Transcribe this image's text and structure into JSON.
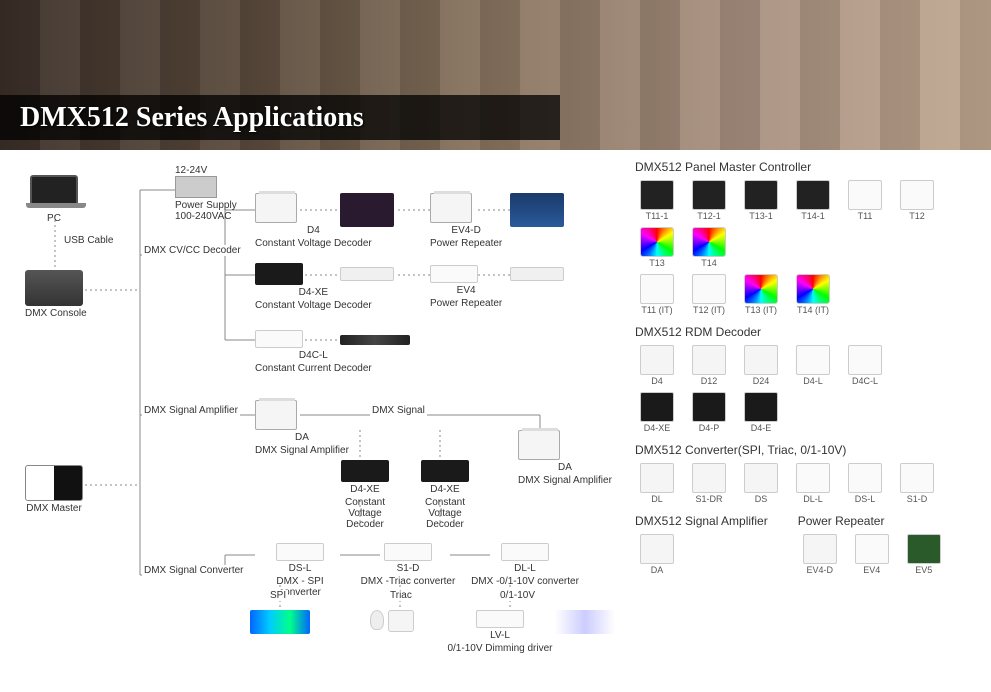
{
  "banner": {
    "title": "DMX512 Series Applications"
  },
  "diagram": {
    "psu": {
      "top_label": "12-24V",
      "bottom_label": "Power Supply\n100-240VAC"
    },
    "pc": {
      "label": "PC"
    },
    "usb_cable": "USB Cable",
    "console": {
      "label": "DMX Console"
    },
    "master": {
      "label": "DMX Master"
    },
    "branch1_label": "DMX CV/CC Decoder",
    "branch2_label": "DMX Signal Amplifier",
    "branch3_label": "DMX Signal Converter",
    "dmx_signal_label": "DMX Signal",
    "d4": {
      "name": "D4",
      "sub": "Constant Voltage Decoder"
    },
    "ev4d": {
      "name": "EV4-D",
      "sub": "Power Repeater"
    },
    "d4xe": {
      "name": "D4-XE",
      "sub": "Constant Voltage Decoder"
    },
    "ev4": {
      "name": "EV4",
      "sub": "Power Repeater"
    },
    "d4cl": {
      "name": "D4C-L",
      "sub": "Constant Current Decoder"
    },
    "da1": {
      "name": "DA",
      "sub": "DMX Signal Amplifier"
    },
    "da2": {
      "name": "DA",
      "sub": "DMX Signal Amplifier"
    },
    "d4xe_mid1": {
      "name": "D4-XE",
      "sub": "Constant\nVoltage\nDecoder"
    },
    "d4xe_mid2": {
      "name": "D4-XE",
      "sub": "Constant\nVoltage\nDecoder"
    },
    "dsl": {
      "name": "DS-L",
      "sub": "DMX - SPI converter"
    },
    "s1d": {
      "name": "S1-D",
      "sub": "DMX -Triac converter"
    },
    "dll": {
      "name": "DL-L",
      "sub": "DMX -0/1-10V converter"
    },
    "spi_label": "SPI",
    "triac_label": "Triac",
    "v010_label": "0/1-10V",
    "lvl": {
      "name": "LV-L",
      "sub": "0/1-10V Dimming driver"
    }
  },
  "catalog": {
    "panel_master": {
      "title": "DMX512 Panel Master Controller",
      "row1": [
        {
          "label": "T11-1",
          "cls": "panel-b"
        },
        {
          "label": "T12-1",
          "cls": "panel-b"
        },
        {
          "label": "T13-1",
          "cls": "panel-b"
        },
        {
          "label": "T14-1",
          "cls": "panel-b"
        },
        {
          "label": "T11",
          "cls": "panel-w"
        },
        {
          "label": "T12",
          "cls": "panel-w"
        },
        {
          "label": "T13",
          "cls": "rgb"
        },
        {
          "label": "T14",
          "cls": "rgb"
        }
      ],
      "row2": [
        {
          "label": "T11 (IT)",
          "cls": "panel-w"
        },
        {
          "label": "T12 (IT)",
          "cls": "panel-w"
        },
        {
          "label": "T13 (IT)",
          "cls": "rgb"
        },
        {
          "label": "T14 (IT)",
          "cls": "rgb"
        }
      ]
    },
    "rdm_decoder": {
      "title": "DMX512 RDM Decoder",
      "row1": [
        {
          "label": "D4",
          "cls": "din"
        },
        {
          "label": "D12",
          "cls": "din"
        },
        {
          "label": "D24",
          "cls": "din"
        },
        {
          "label": "D4-L",
          "cls": "wht"
        },
        {
          "label": "D4C-L",
          "cls": "wht"
        }
      ],
      "row2": [
        {
          "label": "D4-XE",
          "cls": "blk"
        },
        {
          "label": "D4-P",
          "cls": "blk"
        },
        {
          "label": "D4-E",
          "cls": "blk"
        }
      ]
    },
    "converter": {
      "title": "DMX512 Converter(SPI, Triac, 0/1-10V)",
      "row1": [
        {
          "label": "DL",
          "cls": "din"
        },
        {
          "label": "S1-DR",
          "cls": "din"
        },
        {
          "label": "DS",
          "cls": "din"
        },
        {
          "label": "DL-L",
          "cls": "wht"
        },
        {
          "label": "DS-L",
          "cls": "wht"
        },
        {
          "label": "S1-D",
          "cls": "wht"
        }
      ]
    },
    "sig_amp": {
      "title": "DMX512 Signal Amplifier",
      "items": [
        {
          "label": "DA",
          "cls": "din"
        }
      ]
    },
    "power_rep": {
      "title": "Power Repeater",
      "items": [
        {
          "label": "EV4-D",
          "cls": "din"
        },
        {
          "label": "EV4",
          "cls": "wht"
        },
        {
          "label": "EV5",
          "cls": "grn"
        }
      ]
    }
  },
  "style": {
    "bg": "#ffffff",
    "text": "#333333",
    "wire": "#888888",
    "banner_overlay": "rgba(0,0,0,0.75)",
    "title_color": "#ffffff",
    "title_fontsize": 28,
    "label_fontsize": 10,
    "cat_title_fontsize": 12,
    "cat_label_fontsize": 9
  }
}
